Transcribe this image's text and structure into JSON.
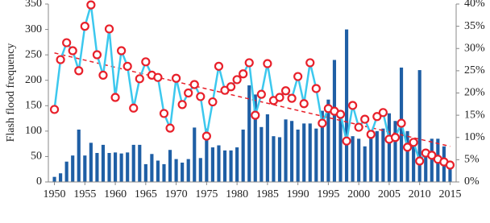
{
  "chart_data": {
    "type": "bar-line",
    "y_label": "Flash flood frequency",
    "x": [
      1950,
      1951,
      1952,
      1953,
      1954,
      1955,
      1956,
      1957,
      1958,
      1959,
      1960,
      1961,
      1962,
      1963,
      1964,
      1965,
      1966,
      1967,
      1968,
      1969,
      1970,
      1971,
      1972,
      1973,
      1974,
      1975,
      1976,
      1977,
      1978,
      1979,
      1980,
      1981,
      1982,
      1983,
      1984,
      1985,
      1986,
      1987,
      1988,
      1989,
      1990,
      1991,
      1992,
      1993,
      1994,
      1995,
      1996,
      1997,
      1998,
      1999,
      2000,
      2001,
      2002,
      2003,
      2004,
      2005,
      2006,
      2007,
      2008,
      2009,
      2010,
      2011,
      2012,
      2013,
      2014,
      2015
    ],
    "series": [
      {
        "color": "#1f5fa5",
        "values": [
          10,
          17,
          40,
          52,
          103,
          52,
          77,
          57,
          73,
          57,
          58,
          56,
          58,
          73,
          73,
          35,
          55,
          42,
          35,
          63,
          45,
          38,
          45,
          107,
          47,
          105,
          68,
          72,
          62,
          62,
          68,
          103,
          190,
          172,
          108,
          133,
          90,
          88,
          123,
          120,
          103,
          115,
          115,
          105,
          140,
          162,
          240,
          130,
          300,
          90,
          85,
          70,
          90,
          100,
          105,
          135,
          120,
          225,
          100,
          85,
          220,
          60,
          85,
          85,
          70,
          30
        ]
      },
      {
        "color": "#3cc8ee",
        "marker_color": "#e8202a",
        "axis": "y2",
        "values": [
          16.3,
          27.5,
          31.3,
          29.5,
          25,
          35,
          39.8,
          28.6,
          24,
          34.4,
          19,
          29.5,
          26,
          16.6,
          23.2,
          27,
          24,
          23.5,
          15.4,
          12.1,
          23.3,
          17.4,
          20,
          21.9,
          19.2,
          10.3,
          18,
          26,
          20.6,
          21.4,
          23,
          24.3,
          26.8,
          15,
          19.7,
          26.6,
          18.3,
          19,
          20.5,
          18.8,
          23.7,
          17.6,
          26.8,
          21,
          13.2,
          16.5,
          15.9,
          15.2,
          9.2,
          17.2,
          12.3,
          14.1,
          10.7,
          14.7,
          15.6,
          9.6,
          10,
          13.2,
          7.8,
          8.9,
          4.7,
          6.5,
          6,
          5.1,
          4.5,
          3.8
        ]
      }
    ],
    "trend": {
      "color": "#e8202a",
      "x": [
        1950,
        2015
      ],
      "values": [
        29,
        8
      ]
    },
    "xlim": [
      1949,
      2016
    ],
    "xticks": [
      1950,
      1955,
      1960,
      1965,
      1970,
      1975,
      1980,
      1985,
      1990,
      1995,
      2000,
      2005,
      2010,
      2015
    ],
    "ylim": [
      0,
      350
    ],
    "yticks": [
      0,
      50,
      100,
      150,
      200,
      250,
      300,
      350
    ],
    "y2lim": [
      0,
      40
    ],
    "y2ticks": [
      {
        "value": 0,
        "label": "0%"
      },
      {
        "value": 5,
        "label": "5%"
      },
      {
        "value": 10,
        "label": "10%"
      },
      {
        "value": 15,
        "label": "15%"
      },
      {
        "value": 20,
        "label": "20%"
      },
      {
        "value": 25,
        "label": "25%"
      },
      {
        "value": 30,
        "label": "30%"
      },
      {
        "value": 35,
        "label": "35%"
      },
      {
        "value": 40,
        "label": "40%"
      }
    ]
  }
}
